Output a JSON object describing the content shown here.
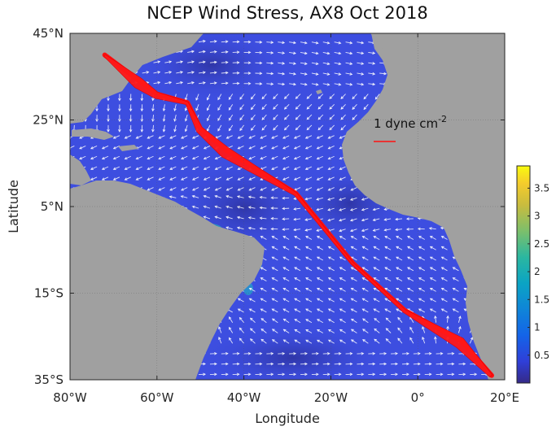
{
  "title": "NCEP Wind Stress, AX8 Oct 2018",
  "map": {
    "lon_range": [
      -80,
      20
    ],
    "lat_range": [
      -35,
      45
    ],
    "x_ticks": [
      {
        "value": -80,
        "label": "80°W"
      },
      {
        "value": -60,
        "label": "60°W"
      },
      {
        "value": -40,
        "label": "40°W"
      },
      {
        "value": -20,
        "label": "20°W"
      },
      {
        "value": 0,
        "label": "0°"
      },
      {
        "value": 20,
        "label": "20°E"
      }
    ],
    "y_ticks": [
      {
        "value": 45,
        "label": "45°N"
      },
      {
        "value": 25,
        "label": "25°N"
      },
      {
        "value": 5,
        "label": "5°N"
      },
      {
        "value": -15,
        "label": "15°S"
      },
      {
        "value": -35,
        "label": "35°S"
      }
    ],
    "xlabel": "Longitude",
    "ylabel": "Latitude",
    "grid": true,
    "colors": {
      "ocean": "#3d4ee0",
      "land": "#a0a0a0",
      "arrows": "#ffffff",
      "track": "#ff1010"
    }
  },
  "reference_vector": {
    "label": "1 dyne cm",
    "superscript": "-2",
    "lon": -10,
    "lat": 26
  },
  "ship_track": {
    "name": "AX8",
    "path": [
      [
        -72,
        40
      ],
      [
        -64,
        34
      ],
      [
        -60,
        31
      ],
      [
        -53,
        29
      ],
      [
        -50,
        23
      ],
      [
        -44,
        18
      ],
      [
        -28,
        8
      ],
      [
        -15,
        -8
      ],
      [
        -3,
        -19
      ],
      [
        10,
        -26
      ],
      [
        17,
        -34
      ]
    ]
  },
  "colorbar": {
    "range": [
      0,
      3.9
    ],
    "ticks": [
      0.5,
      1,
      1.5,
      2,
      2.5,
      3,
      3.5
    ],
    "tick_labels": [
      "0.5",
      "1",
      "1.5",
      "2",
      "2.5",
      "3",
      "3.5"
    ],
    "colormap": "parula"
  }
}
